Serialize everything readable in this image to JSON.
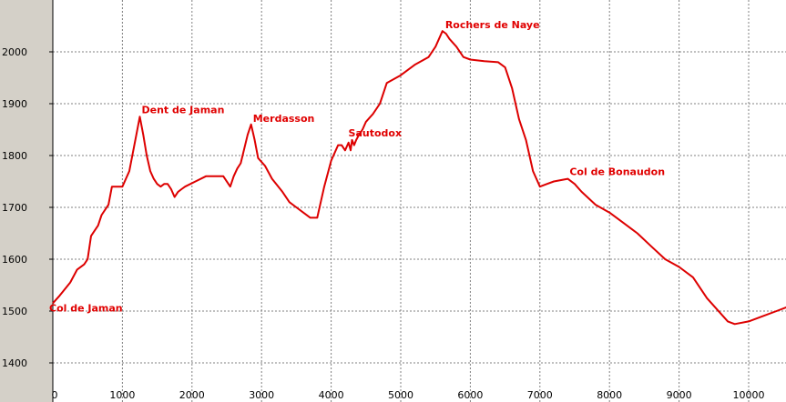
{
  "chart_data": {
    "type": "line",
    "title": "",
    "xlabel": "",
    "ylabel": "",
    "xlim": [
      0,
      10600
    ],
    "ylim": [
      1360,
      2100
    ],
    "grid": true,
    "x_ticks": [
      0,
      1000,
      2000,
      3000,
      4000,
      5000,
      6000,
      7000,
      8000,
      9000,
      10000
    ],
    "y_ticks": [
      1400,
      1500,
      1600,
      1700,
      1800,
      1900,
      2000
    ],
    "colors": {
      "line": "#dd0000",
      "grid": "#808080",
      "plot_background": "#ffffff",
      "frame": "#d4d0c8"
    },
    "series": [
      {
        "x": [
          0,
          100,
          250,
          350,
          450,
          500,
          550,
          650,
          700,
          800,
          850,
          1000,
          1100,
          1200,
          1250,
          1300,
          1350,
          1400,
          1450,
          1500,
          1550,
          1600,
          1650,
          1700,
          1750,
          1800,
          1850,
          1900,
          2050,
          2200,
          2350,
          2450,
          2550,
          2600,
          2650,
          2700,
          2800,
          2850,
          2900,
          2950,
          3050,
          3150,
          3300,
          3400,
          3500,
          3600,
          3700,
          3800,
          3900,
          4000,
          4100,
          4150,
          4200,
          4250,
          4280,
          4300,
          4330,
          4360,
          4400,
          4450,
          4500,
          4600,
          4700,
          4800,
          5000,
          5200,
          5400,
          5500,
          5600,
          5650,
          5700,
          5800,
          5900,
          6000,
          6200,
          6400,
          6500,
          6600,
          6700,
          6800,
          6900,
          7000,
          7100,
          7200,
          7400,
          7500,
          7600,
          7800,
          8000,
          8200,
          8400,
          8600,
          8800,
          9000,
          9200,
          9400,
          9600,
          9700,
          9800,
          10000,
          10200,
          10400,
          10600
        ],
        "y": [
          1515,
          1530,
          1555,
          1580,
          1590,
          1600,
          1645,
          1665,
          1685,
          1705,
          1740,
          1740,
          1770,
          1840,
          1875,
          1840,
          1800,
          1770,
          1755,
          1745,
          1740,
          1745,
          1745,
          1735,
          1720,
          1730,
          1735,
          1740,
          1750,
          1760,
          1760,
          1760,
          1740,
          1760,
          1775,
          1785,
          1840,
          1860,
          1830,
          1795,
          1780,
          1755,
          1730,
          1710,
          1700,
          1690,
          1680,
          1680,
          1740,
          1790,
          1820,
          1820,
          1810,
          1825,
          1810,
          1830,
          1820,
          1830,
          1840,
          1850,
          1865,
          1880,
          1900,
          1940,
          1955,
          1975,
          1990,
          2010,
          2040,
          2035,
          2025,
          2010,
          1990,
          1985,
          1982,
          1980,
          1970,
          1930,
          1870,
          1830,
          1770,
          1740,
          1745,
          1750,
          1755,
          1745,
          1730,
          1705,
          1690,
          1670,
          1650,
          1625,
          1600,
          1585,
          1565,
          1525,
          1495,
          1480,
          1475,
          1480,
          1490,
          1500,
          1510
        ]
      }
    ],
    "annotations": [
      {
        "text": "Col de Jaman",
        "x": 0,
        "y": 1515
      },
      {
        "text": "Dent de Jaman",
        "x": 1250,
        "y": 1875
      },
      {
        "text": "Merdasson",
        "x": 2850,
        "y": 1860
      },
      {
        "text": "Sautodox",
        "x": 4300,
        "y": 1830
      },
      {
        "text": "Rochers de Naye",
        "x": 5600,
        "y": 2040
      },
      {
        "text": "Col de Bonaudon",
        "x": 7400,
        "y": 1755
      }
    ]
  }
}
